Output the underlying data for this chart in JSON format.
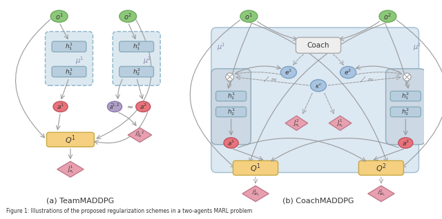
{
  "fig_width": 6.4,
  "fig_height": 3.18,
  "dpi": 100,
  "bg_color": "#ffffff",
  "label_a": "(a) TeamMADDPG",
  "label_b": "(b) CoachMADDPG",
  "caption": "Figure 1: Illustrations of the proposed regularization schemes in a two-agents MARL problem",
  "colors": {
    "green_circle": "#8dc87a",
    "green_circle_edge": "#6aaa58",
    "pink_circle": "#e8737a",
    "pink_circle_edge": "#c05060",
    "purple_circle": "#b0a0c8",
    "purple_circle_edge": "#8878a8",
    "blue_ellipse": "#a8c0d8",
    "blue_ellipse_edge": "#7898b8",
    "yellow_rect": "#f5d080",
    "yellow_rect_edge": "#c8a840",
    "pink_diamond": "#e8a0b0",
    "pink_diamond_edge": "#c07888",
    "blue_box": "#b8cede",
    "blue_box_edge": "#8aacbc",
    "dashed_box_bg": "#dce8f0",
    "dashed_box_edge": "#90b8cc",
    "solid_box_bg": "#dce8f0",
    "solid_box_edge": "#90b8cc",
    "coach_box_bg": "#eeeeee",
    "coach_box_edge": "#aaaaaa",
    "arrow_color": "#999999",
    "text_color": "#333333"
  }
}
